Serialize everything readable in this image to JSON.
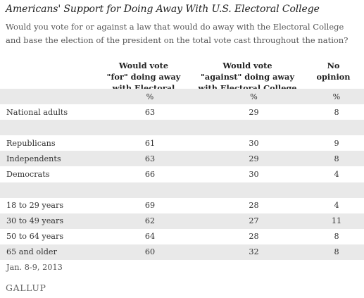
{
  "title": "Americans' Support for Doing Away With U.S. Electoral College",
  "question": "Would you vote for or against a law that would do away with the Electoral College and base the election of the president on the total vote cast throughout the nation?",
  "headers": {
    "for": [
      "Would vote",
      "\"for\" doing away",
      "with Electoral College"
    ],
    "against": [
      "Would vote",
      "\"against\" doing away",
      "with Electoral College"
    ],
    "no_opinion": [
      "No",
      "opinion"
    ]
  },
  "chart_data": {
    "type": "table",
    "columns": [
      "Would vote \"for\" doing away with Electoral College",
      "Would vote \"against\" doing away with Electoral College",
      "No opinion"
    ],
    "unit_row": [
      "%",
      "%",
      "%"
    ],
    "rows": [
      {
        "label": "National adults",
        "values": [
          "63",
          "29",
          "8"
        ]
      },
      {
        "label": "Republicans",
        "values": [
          "61",
          "30",
          "9"
        ]
      },
      {
        "label": "Independents",
        "values": [
          "63",
          "29",
          "8"
        ]
      },
      {
        "label": "Democrats",
        "values": [
          "66",
          "30",
          "4"
        ]
      },
      {
        "label": "18 to 29 years",
        "values": [
          "69",
          "28",
          "4"
        ]
      },
      {
        "label": "30 to 49 years",
        "values": [
          "62",
          "27",
          "11"
        ]
      },
      {
        "label": "50 to 64 years",
        "values": [
          "64",
          "28",
          "8"
        ]
      },
      {
        "label": "65 and older",
        "values": [
          "60",
          "32",
          "8"
        ]
      }
    ]
  },
  "footnote": "Jan. 8-9, 2013",
  "logo": "GALLUP",
  "colors": {
    "row_shade": "#e9e9e9",
    "text": "#333333"
  }
}
